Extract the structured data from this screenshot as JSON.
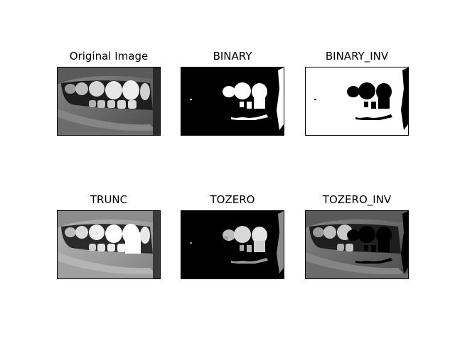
{
  "figure": {
    "panels": [
      {
        "id": "original",
        "title": "Original Image"
      },
      {
        "id": "binary",
        "title": "BINARY"
      },
      {
        "id": "binary_inv",
        "title": "BINARY_INV"
      },
      {
        "id": "trunc",
        "title": "TRUNC"
      },
      {
        "id": "tozero",
        "title": "TOZERO"
      },
      {
        "id": "tozero_inv",
        "title": "TOZERO_INV"
      }
    ]
  }
}
